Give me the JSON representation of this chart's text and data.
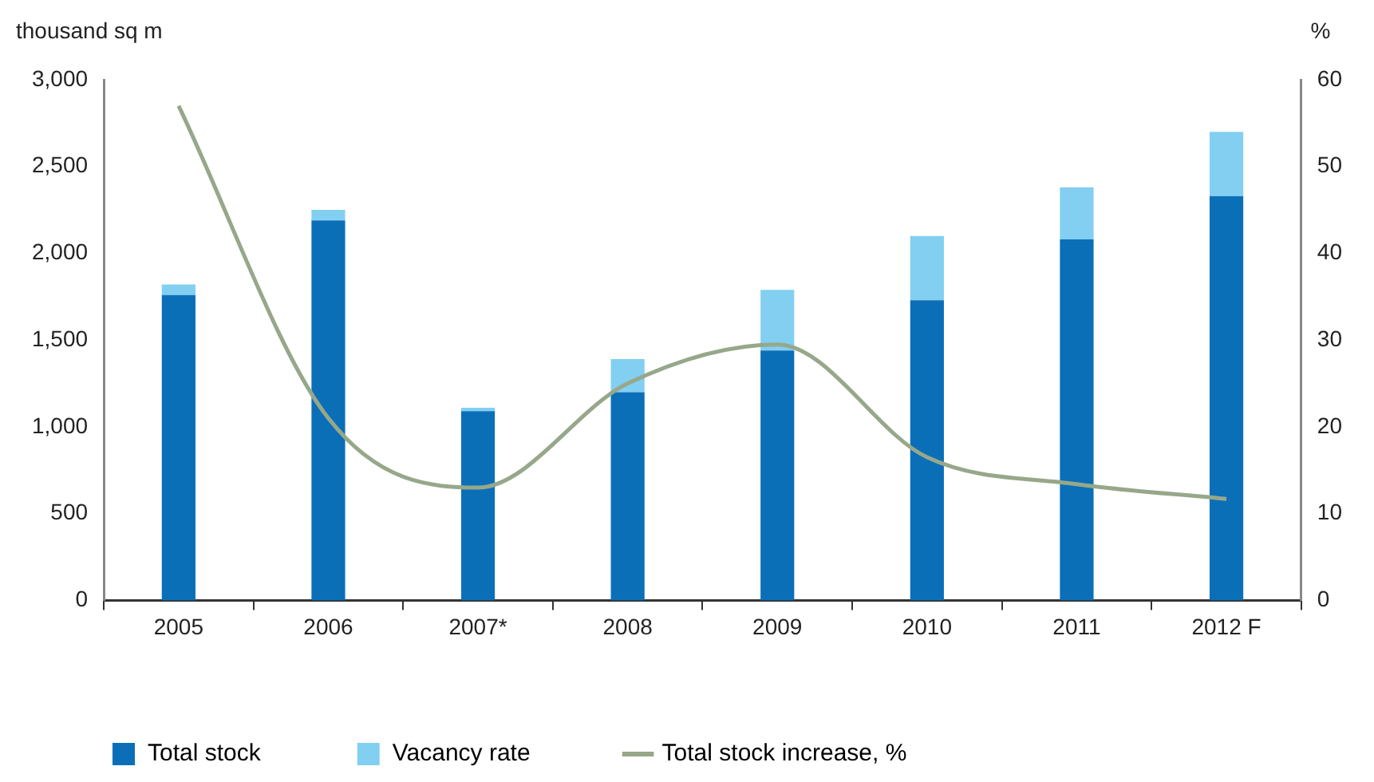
{
  "chart_data": {
    "type": "bar",
    "stacked": true,
    "ylabel": "thousand sq m",
    "y2label": "%",
    "categories": [
      "2005",
      "2006",
      "2007*",
      "2008",
      "2009",
      "2010",
      "2011",
      "2012 F"
    ],
    "series": [
      {
        "name": "Total stock",
        "color": "#0b6fb8",
        "values": [
          1760,
          2190,
          1090,
          1200,
          1440,
          1730,
          2080,
          2330
        ]
      },
      {
        "name": "Vacancy rate",
        "color": "#82cff2",
        "values": [
          60,
          60,
          20,
          190,
          350,
          370,
          300,
          370
        ]
      },
      {
        "name": "Total stock increase, %",
        "type": "line",
        "axis": "y2",
        "color": "#97a78a",
        "values": [
          57,
          21,
          13,
          25,
          29.5,
          16.5,
          13.4,
          11.7
        ]
      }
    ],
    "ylim": [
      0,
      3000
    ],
    "yticks": [
      0,
      {
        "value": 500,
        "label": "500"
      },
      {
        "value": 1000,
        "label": "1,000"
      },
      {
        "value": 1500,
        "label": "1,500"
      },
      {
        "value": 2000,
        "label": "2,000"
      },
      {
        "value": 2500,
        "label": "2,500"
      },
      {
        "value": 3000,
        "label": "3,000"
      }
    ],
    "y2lim": [
      0,
      60
    ],
    "y2ticks": [
      0,
      10,
      20,
      30,
      40,
      50,
      60
    ],
    "legend": "bottom",
    "marker": "none"
  }
}
